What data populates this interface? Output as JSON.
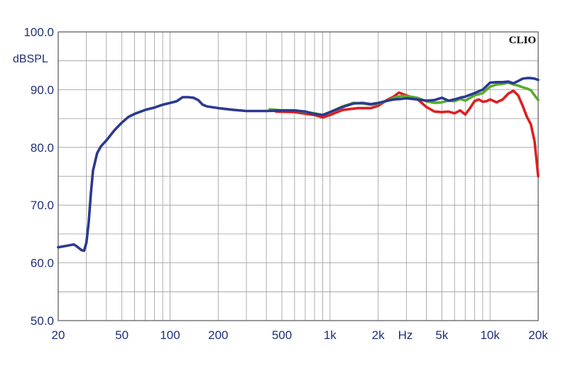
{
  "chart_data": {
    "type": "line",
    "brand_label": "CLIO",
    "ylabel": "dBSPL",
    "xlabel": "Hz",
    "xscale": "log",
    "xlim": [
      20,
      20000
    ],
    "ylim": [
      50,
      100
    ],
    "grid": true,
    "y_ticks": [
      {
        "value": 100,
        "label": "100.0"
      },
      {
        "value": 90,
        "label": "90.0"
      },
      {
        "value": 80,
        "label": "80.0"
      },
      {
        "value": 70,
        "label": "70.0"
      },
      {
        "value": 60,
        "label": "60.0"
      },
      {
        "value": 50,
        "label": "50.0"
      }
    ],
    "x_ticks": [
      {
        "value": 20,
        "label": "20"
      },
      {
        "value": 50,
        "label": "50"
      },
      {
        "value": 100,
        "label": "100"
      },
      {
        "value": 200,
        "label": "200"
      },
      {
        "value": 500,
        "label": "500"
      },
      {
        "value": 1000,
        "label": "1k"
      },
      {
        "value": 2000,
        "label": "2k"
      },
      {
        "value": 5000,
        "label": "5k"
      },
      {
        "value": 10000,
        "label": "10k"
      },
      {
        "value": 20000,
        "label": "20k"
      }
    ],
    "series": [
      {
        "color": "#dd1f1f",
        "points": [
          [
            460,
            86.2
          ],
          [
            600,
            86.1
          ],
          [
            800,
            85.6
          ],
          [
            900,
            85.2
          ],
          [
            1000,
            85.6
          ],
          [
            1200,
            86.5
          ],
          [
            1500,
            86.8
          ],
          [
            1800,
            86.8
          ],
          [
            2000,
            87.2
          ],
          [
            2300,
            88.3
          ],
          [
            2500,
            88.8
          ],
          [
            2700,
            89.5
          ],
          [
            3000,
            89.0
          ],
          [
            3500,
            88.4
          ],
          [
            4000,
            87.0
          ],
          [
            4500,
            86.2
          ],
          [
            5000,
            86.1
          ],
          [
            5500,
            86.2
          ],
          [
            6000,
            85.9
          ],
          [
            6500,
            86.4
          ],
          [
            7000,
            85.7
          ],
          [
            7500,
            86.8
          ],
          [
            8000,
            88.0
          ],
          [
            8500,
            88.3
          ],
          [
            9000,
            87.9
          ],
          [
            9500,
            88.0
          ],
          [
            10000,
            88.3
          ],
          [
            11000,
            87.8
          ],
          [
            12000,
            88.3
          ],
          [
            13000,
            89.3
          ],
          [
            14000,
            89.8
          ],
          [
            15000,
            89.0
          ],
          [
            16000,
            87.2
          ],
          [
            17000,
            85.3
          ],
          [
            18000,
            84.0
          ],
          [
            19000,
            81.0
          ],
          [
            20000,
            75.0
          ]
        ]
      },
      {
        "color": "#5aaa2c",
        "points": [
          [
            420,
            86.6
          ],
          [
            500,
            86.4
          ],
          [
            600,
            86.4
          ],
          [
            800,
            85.9
          ],
          [
            900,
            85.6
          ],
          [
            1000,
            86.1
          ],
          [
            1200,
            87.1
          ],
          [
            1400,
            87.7
          ],
          [
            1600,
            87.6
          ],
          [
            1800,
            87.4
          ],
          [
            2000,
            87.6
          ],
          [
            2300,
            88.1
          ],
          [
            2500,
            88.6
          ],
          [
            2800,
            88.9
          ],
          [
            3000,
            88.9
          ],
          [
            3500,
            88.6
          ],
          [
            4000,
            88.0
          ],
          [
            4500,
            87.7
          ],
          [
            5000,
            87.8
          ],
          [
            5500,
            88.1
          ],
          [
            6000,
            88.0
          ],
          [
            6500,
            88.4
          ],
          [
            7000,
            88.1
          ],
          [
            8000,
            89.0
          ],
          [
            9000,
            89.4
          ],
          [
            10000,
            90.5
          ],
          [
            11000,
            90.9
          ],
          [
            12000,
            91.0
          ],
          [
            13000,
            91.2
          ],
          [
            14000,
            90.9
          ],
          [
            15000,
            90.7
          ],
          [
            16000,
            90.4
          ],
          [
            17000,
            90.2
          ],
          [
            18000,
            89.9
          ],
          [
            19000,
            89.0
          ],
          [
            20000,
            88.2
          ]
        ]
      },
      {
        "color": "#2b3990",
        "points": [
          [
            20,
            62.7
          ],
          [
            22,
            62.9
          ],
          [
            25,
            63.2
          ],
          [
            26,
            62.9
          ],
          [
            28,
            62.2
          ],
          [
            29,
            62.1
          ],
          [
            30,
            63.5
          ],
          [
            31,
            67.0
          ],
          [
            32,
            72.0
          ],
          [
            33,
            76.0
          ],
          [
            35,
            79.0
          ],
          [
            37,
            80.2
          ],
          [
            40,
            81.2
          ],
          [
            45,
            83.0
          ],
          [
            50,
            84.3
          ],
          [
            55,
            85.3
          ],
          [
            60,
            85.8
          ],
          [
            70,
            86.5
          ],
          [
            80,
            86.9
          ],
          [
            90,
            87.4
          ],
          [
            100,
            87.7
          ],
          [
            110,
            88.0
          ],
          [
            120,
            88.7
          ],
          [
            130,
            88.7
          ],
          [
            140,
            88.6
          ],
          [
            150,
            88.2
          ],
          [
            160,
            87.4
          ],
          [
            170,
            87.1
          ],
          [
            200,
            86.8
          ],
          [
            250,
            86.5
          ],
          [
            300,
            86.3
          ],
          [
            400,
            86.3
          ],
          [
            500,
            86.4
          ],
          [
            600,
            86.4
          ],
          [
            700,
            86.2
          ],
          [
            800,
            85.8
          ],
          [
            900,
            85.6
          ],
          [
            1000,
            86.1
          ],
          [
            1200,
            87.0
          ],
          [
            1400,
            87.6
          ],
          [
            1600,
            87.7
          ],
          [
            1800,
            87.5
          ],
          [
            2000,
            87.7
          ],
          [
            2300,
            88.1
          ],
          [
            2500,
            88.3
          ],
          [
            2800,
            88.4
          ],
          [
            3000,
            88.5
          ],
          [
            3500,
            88.3
          ],
          [
            4000,
            88.1
          ],
          [
            4500,
            88.2
          ],
          [
            5000,
            88.6
          ],
          [
            5500,
            88.1
          ],
          [
            6000,
            88.3
          ],
          [
            6500,
            88.6
          ],
          [
            7000,
            88.8
          ],
          [
            8000,
            89.4
          ],
          [
            9000,
            90.0
          ],
          [
            10000,
            91.2
          ],
          [
            11000,
            91.3
          ],
          [
            12000,
            91.3
          ],
          [
            13000,
            91.4
          ],
          [
            14000,
            91.1
          ],
          [
            15000,
            91.5
          ],
          [
            16000,
            91.9
          ],
          [
            17000,
            92.0
          ],
          [
            18000,
            92.0
          ],
          [
            19000,
            91.9
          ],
          [
            20000,
            91.7
          ]
        ]
      }
    ]
  }
}
